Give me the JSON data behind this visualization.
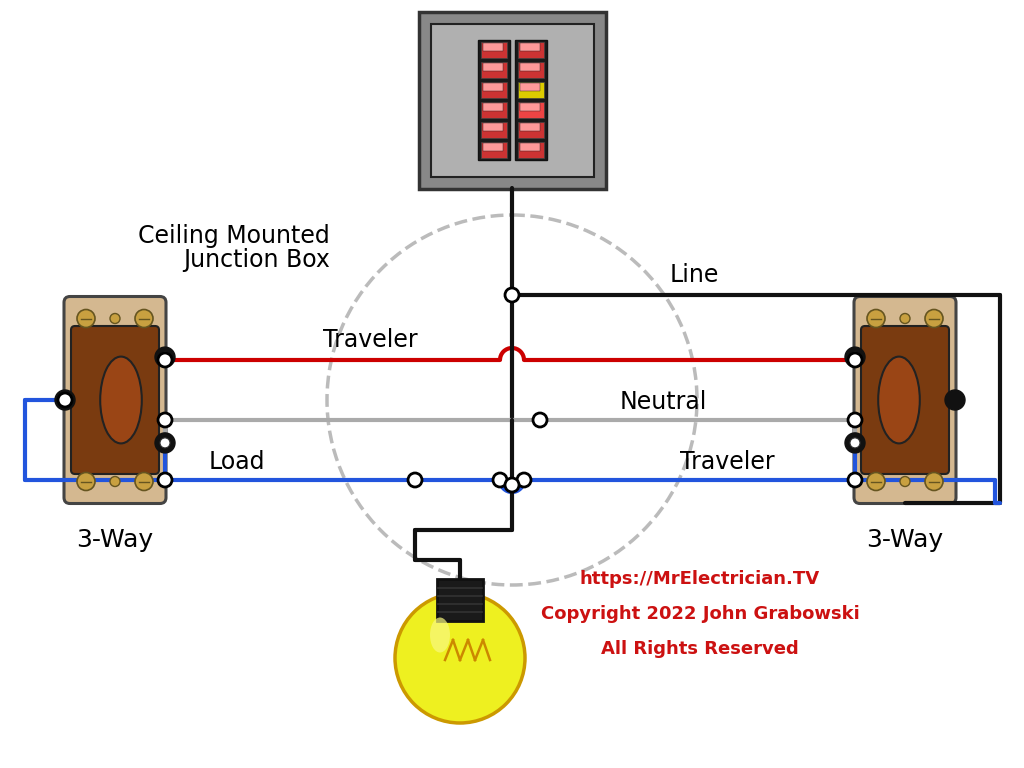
{
  "bg_color": "#ffffff",
  "wire_black": "#111111",
  "wire_red": "#cc0000",
  "wire_gray": "#aaaaaa",
  "wire_blue": "#2255dd",
  "switch_beige": "#d4b890",
  "switch_brown": "#7a3b10",
  "panel_gray": "#888888",
  "panel_mid": "#b0b0b0",
  "text_red": "#cc1111",
  "labels": {
    "line": "Line",
    "traveler_top": "Traveler",
    "neutral": "Neutral",
    "traveler_bot": "Traveler",
    "load": "Load",
    "junction_box_line1": "Ceiling Mounted",
    "junction_box_line2": "Junction Box",
    "switch_left": "3-Way",
    "switch_right": "3-Way",
    "website": "https://MrElectrician.TV",
    "copyright": "Copyright 2022 John Grabowski",
    "rights": "All Rights Reserved"
  }
}
